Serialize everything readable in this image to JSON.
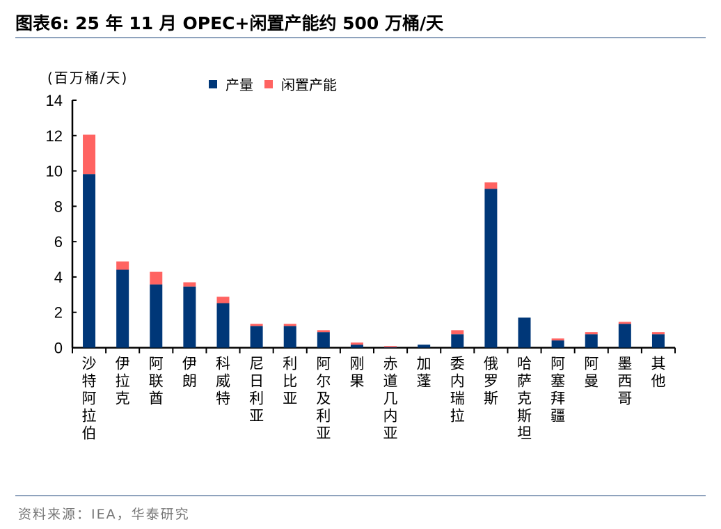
{
  "title": "图表6:   25 年  11 月  OPEC+闲置产能约 500 万桶/天",
  "source": "资料来源：IEA，华泰研究",
  "chart_data": {
    "type": "bar",
    "stacked": true,
    "title": "",
    "ylabel": "(百万桶/天)",
    "ylim": [
      0,
      14
    ],
    "yticks": [
      0,
      2,
      4,
      6,
      8,
      10,
      12,
      14
    ],
    "grid": false,
    "legend_position": "top",
    "categories": [
      "沙特阿拉伯",
      "伊拉克",
      "阿联酋",
      "伊朗",
      "科威特",
      "尼日利亚",
      "利比亚",
      "阿尔及利亚",
      "刚果",
      "赤道几内亚",
      "加蓬",
      "委内瑞拉",
      "俄罗斯",
      "哈萨克斯坦",
      "阿塞拜疆",
      "阿曼",
      "墨西哥",
      "其他"
    ],
    "series": [
      {
        "name": "产量",
        "color": "#003778",
        "values": [
          9.82,
          4.41,
          3.58,
          3.46,
          2.52,
          1.23,
          1.23,
          0.88,
          0.17,
          0.03,
          0.17,
          0.76,
          8.99,
          1.7,
          0.41,
          0.76,
          1.35,
          0.76
        ]
      },
      {
        "name": "闲置产能",
        "color": "#ff6361",
        "values": [
          2.23,
          0.47,
          0.71,
          0.24,
          0.36,
          0.12,
          0.12,
          0.11,
          0.12,
          0.06,
          0.0,
          0.23,
          0.36,
          0.0,
          0.11,
          0.12,
          0.11,
          0.12
        ]
      }
    ]
  }
}
